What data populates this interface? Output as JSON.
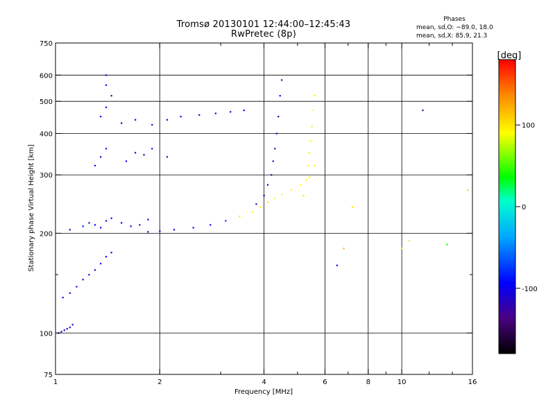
{
  "header": {
    "title_line1": "Tromsø 20130101 12:44:00–12:45:43",
    "title_line2": "RwPretec (8p)"
  },
  "phase_stats": {
    "label": "Phases",
    "line_o": "mean, sd,O: −89.0, 18.0",
    "line_x": "mean, sd,X: 85.9, 21.3"
  },
  "colorbar": {
    "unit_label": "[deg]",
    "range": [
      -180,
      180
    ],
    "ticks": [
      {
        "label": "100",
        "value": 100
      },
      {
        "label": "0",
        "value": 0
      },
      {
        "label": "-100",
        "value": -100
      }
    ]
  },
  "chart_data": {
    "type": "scatter",
    "title": "Tromsø 20130101 12:44:00–12:45:43 RwPretec (8p)",
    "xlabel": "Frequency [MHz]",
    "ylabel": "Stationary phase Virtual Height [km]",
    "x_scale": "log",
    "y_scale": "log",
    "xlim": [
      1,
      16
    ],
    "ylim": [
      75,
      750
    ],
    "x_ticks": [
      {
        "label": "1",
        "value": 1
      },
      {
        "label": "2",
        "value": 2
      },
      {
        "label": "4",
        "value": 4
      },
      {
        "label": "6",
        "value": 6
      },
      {
        "label": "8",
        "value": 8
      },
      {
        "label": "10",
        "value": 10
      },
      {
        "label": "16",
        "value": 16
      }
    ],
    "x_minor": [
      3,
      5,
      7,
      9,
      12,
      14
    ],
    "y_ticks": [
      {
        "label": "75",
        "value": 75
      },
      {
        "label": "100",
        "value": 100
      },
      {
        "label": "200",
        "value": 200
      },
      {
        "label": "300",
        "value": 300
      },
      {
        "label": "400",
        "value": 400
      },
      {
        "label": "500",
        "value": 500
      },
      {
        "label": "600",
        "value": 600
      },
      {
        "label": "750",
        "value": 750
      }
    ],
    "grid_x": [
      2,
      4,
      6,
      8,
      10
    ],
    "grid_y": [
      100,
      200,
      300,
      400,
      500,
      600
    ],
    "minor_y": [
      150
    ],
    "color_quantity": "phase [deg]",
    "series": [
      {
        "note": "",
        "x": [
          1.02,
          1.04,
          1.06,
          1.08,
          1.1,
          1.12
        ],
        "y": [
          100,
          101,
          102,
          103,
          104,
          106
        ],
        "phase": [
          -110,
          -105,
          -100,
          -110,
          -95,
          -100
        ]
      },
      {
        "x": [
          1.05,
          1.1,
          1.15,
          1.2,
          1.25,
          1.3,
          1.35,
          1.4,
          1.45
        ],
        "y": [
          128,
          132,
          138,
          145,
          150,
          155,
          162,
          170,
          175
        ],
        "phase": [
          -100,
          -90,
          -105,
          -95,
          -110,
          -100,
          -90,
          -100,
          -95
        ]
      },
      {
        "x": [
          1.1,
          1.2,
          1.25,
          1.3,
          1.35,
          1.4,
          1.45,
          1.55,
          1.65,
          1.75,
          1.85
        ],
        "y": [
          205,
          210,
          215,
          212,
          208,
          218,
          222,
          215,
          210,
          212,
          220
        ],
        "phase": [
          -100,
          -90,
          -110,
          -95,
          -100,
          -105,
          -90,
          -95,
          -100,
          -110,
          -95
        ]
      },
      {
        "x": [
          1.85,
          2.0,
          2.2,
          2.5,
          2.8,
          3.1,
          3.4,
          3.7,
          3.9,
          4.1,
          4.3,
          4.5,
          4.8,
          5.1,
          5.4,
          5.6
        ],
        "y": [
          202,
          203,
          205,
          208,
          212,
          218,
          225,
          232,
          240,
          248,
          255,
          262,
          270,
          280,
          295,
          320
        ],
        "phase": [
          -110,
          -105,
          -100,
          -95,
          -90,
          -80,
          80,
          90,
          95,
          100,
          90,
          85,
          95,
          90,
          85,
          95
        ]
      },
      {
        "x": [
          3.8,
          4.0,
          4.1,
          4.2,
          4.25,
          4.3,
          4.35,
          4.4,
          4.45,
          4.5
        ],
        "y": [
          245,
          260,
          280,
          300,
          330,
          360,
          400,
          450,
          520,
          580
        ],
        "phase": [
          -120,
          -110,
          -115,
          -120,
          -110,
          -115,
          -120,
          -110,
          -100,
          -105
        ]
      },
      {
        "x": [
          5.2,
          5.3,
          5.35,
          5.4,
          5.45,
          5.5,
          5.55,
          5.6
        ],
        "y": [
          260,
          290,
          320,
          350,
          380,
          420,
          470,
          520
        ],
        "phase": [
          100,
          95,
          90,
          85,
          95,
          100,
          90,
          80
        ]
      },
      {
        "x": [
          1.3,
          1.35,
          1.4,
          1.6,
          1.7,
          1.8,
          1.9,
          2.1
        ],
        "y": [
          320,
          340,
          360,
          330,
          350,
          345,
          360,
          340
        ],
        "phase": [
          -100,
          -90,
          -105,
          -100,
          -95,
          -110,
          -100,
          -105
        ]
      },
      {
        "x": [
          1.55,
          1.7,
          1.9,
          2.1,
          2.3,
          2.6,
          2.9,
          3.2,
          3.5
        ],
        "y": [
          430,
          440,
          425,
          440,
          450,
          455,
          460,
          465,
          470
        ],
        "phase": [
          -100,
          -105,
          -110,
          -100,
          -95,
          -100,
          -110,
          -105,
          -100
        ]
      },
      {
        "x": [
          1.35,
          1.4,
          1.45,
          1.4,
          1.4
        ],
        "y": [
          450,
          480,
          520,
          560,
          600
        ],
        "phase": [
          -100,
          -95,
          -110,
          -100,
          -105
        ]
      },
      {
        "x": [
          6.5,
          6.8,
          7.2,
          10.0,
          10.5,
          11.5,
          13.5,
          15.5
        ],
        "y": [
          160,
          180,
          240,
          180,
          190,
          470,
          185,
          270
        ],
        "phase": [
          -100,
          120,
          100,
          90,
          80,
          -110,
          40,
          110
        ]
      }
    ]
  }
}
